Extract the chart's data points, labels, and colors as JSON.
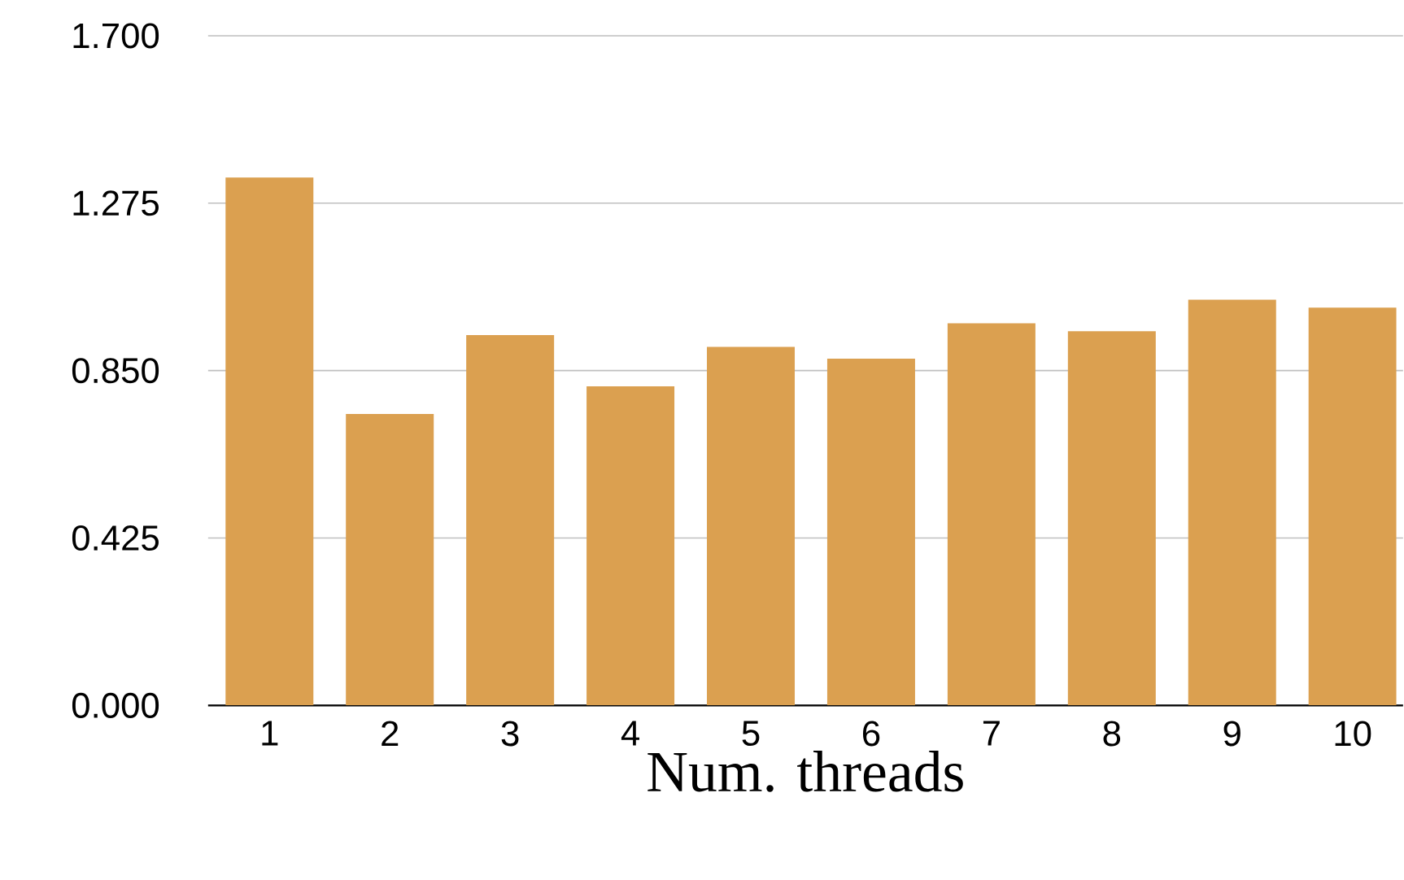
{
  "chart_data": {
    "type": "bar",
    "xlabel": "Num. threads",
    "categories": [
      "1",
      "2",
      "3",
      "4",
      "5",
      "6",
      "7",
      "8",
      "9",
      "10"
    ],
    "values": [
      1.34,
      0.74,
      0.94,
      0.81,
      0.91,
      0.88,
      0.97,
      0.95,
      1.03,
      1.01
    ],
    "color": "#dba050",
    "ylim": [
      0,
      1.7
    ],
    "yticks": [
      {
        "value": 0,
        "label": "0.000"
      },
      {
        "value": 0.425,
        "label": "0.425"
      },
      {
        "value": 0.85,
        "label": "0.850"
      },
      {
        "value": 1.275,
        "label": "1.275"
      },
      {
        "value": 1.7,
        "label": "1.700"
      }
    ],
    "grid": "y"
  }
}
